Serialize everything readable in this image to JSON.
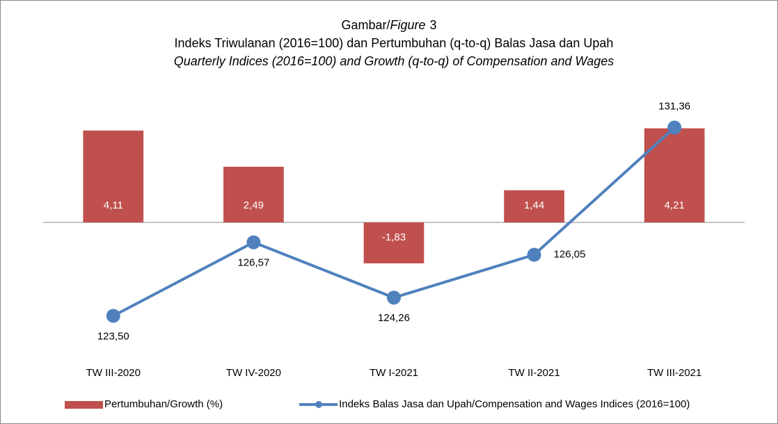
{
  "chart_data": {
    "type": "bar_line",
    "figure": {
      "prefix": "Gambar/",
      "italic": "Figure",
      "number": "3"
    },
    "title": "Indeks Triwulanan (2016=100) dan Pertumbuhan (q-to-q) Balas Jasa dan Upah",
    "subtitle": "Quarterly Indices (2016=100) and Growth (q-to-q) of Compensation and Wages",
    "categories": [
      "TW III-2020",
      "TW IV-2020",
      "TW I-2021",
      "TW II-2021",
      "TW III-2021"
    ],
    "series": [
      {
        "name": "Pertumbuhan/Growth (%)",
        "type": "bar",
        "color": "#c0504d",
        "values": [
          4.11,
          2.49,
          -1.83,
          1.44,
          4.21
        ],
        "value_labels": [
          "4,11",
          "2,49",
          "-1,83",
          "1,44",
          "4,21"
        ]
      },
      {
        "name": "Indeks Balas Jasa dan Upah/Compensation and Wages Indices (2016=100)",
        "type": "line",
        "axis": "y2",
        "color": "#4f81bd",
        "values": [
          123.5,
          126.57,
          124.26,
          126.05,
          131.36
        ],
        "value_labels": [
          "123,50",
          "126,57",
          "124,26",
          "126,05",
          "131,36"
        ]
      }
    ],
    "ylim": [
      -6,
      6
    ],
    "y2lim": [
      121.8,
      133
    ],
    "legend": "bottom"
  }
}
